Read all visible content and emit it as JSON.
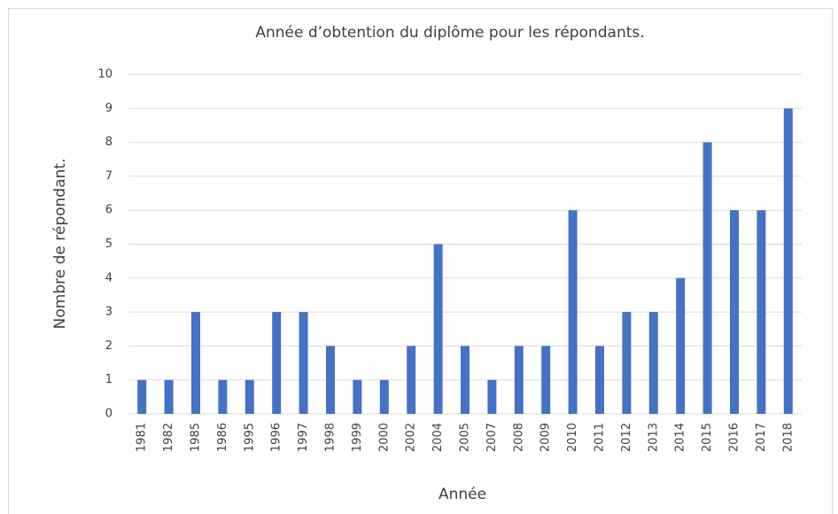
{
  "chart_data": {
    "type": "bar",
    "title": "Année d’obtention du diplôme pour les répondants.",
    "x_label": "Année",
    "y_label": "Nombre de répondant.",
    "categories": [
      "1981",
      "1982",
      "1985",
      "1986",
      "1995",
      "1996",
      "1997",
      "1998",
      "1999",
      "2000",
      "2002",
      "2004",
      "2005",
      "2007",
      "2008",
      "2009",
      "2010",
      "2011",
      "2012",
      "2013",
      "2014",
      "2015",
      "2016",
      "2017",
      "2018"
    ],
    "values": [
      1,
      1,
      3,
      1,
      1,
      3,
      3,
      2,
      1,
      1,
      2,
      5,
      2,
      1,
      2,
      2,
      6,
      2,
      3,
      3,
      4,
      8,
      6,
      6,
      9
    ],
    "color": "#4472c4",
    "ylim": [
      0,
      10
    ],
    "yticks": [
      0,
      1,
      2,
      3,
      4,
      5,
      6,
      7,
      8,
      9,
      10
    ],
    "grid": true
  }
}
